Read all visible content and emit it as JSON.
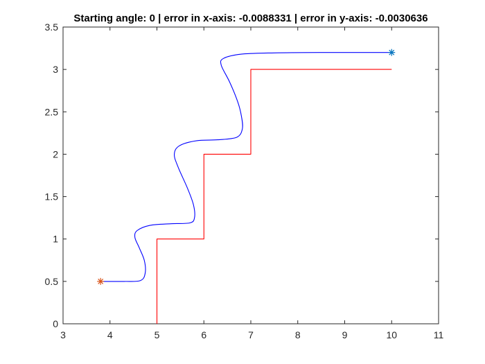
{
  "chart_data": {
    "type": "line",
    "title": "Starting angle: 0 | error in x-axis: -0.0088331 | error in y-axis: -0.0030636",
    "xlabel": "",
    "ylabel": "",
    "xlim": [
      3,
      11
    ],
    "ylim": [
      0,
      3.5
    ],
    "grid": false,
    "x_ticks": [
      "3",
      "4",
      "5",
      "6",
      "7",
      "8",
      "9",
      "10",
      "11"
    ],
    "y_ticks": [
      "0",
      "0.5",
      "1",
      "1.5",
      "2",
      "2.5",
      "3",
      "3.5"
    ],
    "series": [
      {
        "color": "#ff0000",
        "style": "reference-path",
        "x": [
          5,
          5,
          6,
          6,
          7,
          7,
          10
        ],
        "y": [
          0,
          1,
          1,
          2,
          2,
          3,
          3
        ]
      },
      {
        "color": "#0000ff",
        "style": "robot-trajectory",
        "x": [
          3.8,
          4.3,
          4.65,
          4.75,
          4.73,
          4.62,
          4.53,
          4.58,
          4.85,
          5.3,
          5.7,
          5.8,
          5.78,
          5.65,
          5.45,
          5.37,
          5.48,
          5.85,
          6.3,
          6.7,
          6.82,
          6.8,
          6.72,
          6.55,
          6.37,
          6.42,
          6.8,
          7.5,
          8.5,
          9.5,
          10.0
        ],
        "y": [
          0.5,
          0.5,
          0.51,
          0.6,
          0.75,
          0.9,
          1.02,
          1.1,
          1.16,
          1.18,
          1.19,
          1.25,
          1.4,
          1.6,
          1.85,
          2.0,
          2.1,
          2.16,
          2.17,
          2.2,
          2.3,
          2.45,
          2.62,
          2.85,
          3.05,
          3.13,
          3.18,
          3.195,
          3.2,
          3.2,
          3.2
        ]
      }
    ],
    "markers": [
      {
        "x": 3.8,
        "y": 0.5,
        "symbol": "*",
        "color": "#d95319"
      },
      {
        "x": 10.0,
        "y": 3.2,
        "symbol": "*",
        "color": "#0072bd"
      }
    ]
  }
}
